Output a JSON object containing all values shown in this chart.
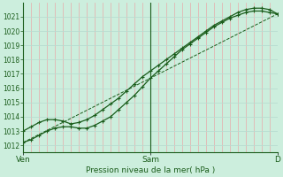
{
  "bg_color": "#cceedd",
  "grid_color_v": "#e8aaaa",
  "grid_color_h": "#b8ddd0",
  "line_color": "#1a5c1a",
  "xlabel": "Pression niveau de la mer( hPa )",
  "ylim": [
    1011.5,
    1022.0
  ],
  "yticks": [
    1012,
    1013,
    1014,
    1015,
    1016,
    1017,
    1018,
    1019,
    1020,
    1021
  ],
  "xtick_labels": [
    "Ven",
    "Sam",
    "D"
  ],
  "xtick_positions": [
    0,
    48,
    96
  ],
  "total_hours": 96,
  "line1_x": [
    0,
    3,
    6,
    9,
    12,
    15,
    18,
    21,
    24,
    27,
    30,
    33,
    36,
    39,
    42,
    45,
    48,
    51,
    54,
    57,
    60,
    63,
    66,
    69,
    72,
    75,
    78,
    81,
    84,
    87,
    90,
    93,
    96
  ],
  "line1_y": [
    1013.0,
    1013.3,
    1013.6,
    1013.8,
    1013.8,
    1013.7,
    1013.5,
    1013.6,
    1013.8,
    1014.1,
    1014.5,
    1014.9,
    1015.3,
    1015.8,
    1016.3,
    1016.8,
    1017.2,
    1017.6,
    1018.0,
    1018.4,
    1018.8,
    1019.2,
    1019.6,
    1020.0,
    1020.4,
    1020.7,
    1021.0,
    1021.3,
    1021.5,
    1021.6,
    1021.6,
    1021.5,
    1021.2
  ],
  "line2_x": [
    0,
    3,
    6,
    9,
    12,
    15,
    18,
    21,
    24,
    27,
    30,
    33,
    36,
    39,
    42,
    45,
    48,
    51,
    54,
    57,
    60,
    63,
    66,
    69,
    72,
    75,
    78,
    81,
    84,
    87,
    90,
    93,
    96
  ],
  "line2_y": [
    1012.2,
    1012.4,
    1012.7,
    1013.0,
    1013.2,
    1013.3,
    1013.3,
    1013.2,
    1013.2,
    1013.4,
    1013.7,
    1014.0,
    1014.5,
    1015.0,
    1015.5,
    1016.1,
    1016.7,
    1017.2,
    1017.7,
    1018.2,
    1018.7,
    1019.1,
    1019.5,
    1019.9,
    1020.3,
    1020.6,
    1020.9,
    1021.1,
    1021.3,
    1021.4,
    1021.4,
    1021.3,
    1021.2
  ],
  "line3_x": [
    0,
    96
  ],
  "line3_y": [
    1012.2,
    1021.2
  ]
}
